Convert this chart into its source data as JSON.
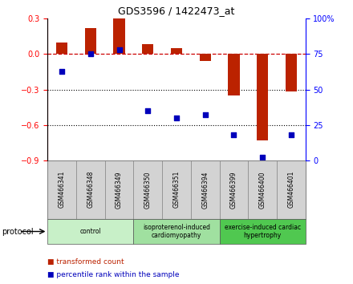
{
  "title": "GDS3596 / 1422473_at",
  "samples": [
    "GSM466341",
    "GSM466348",
    "GSM466349",
    "GSM466350",
    "GSM466351",
    "GSM466394",
    "GSM466399",
    "GSM466400",
    "GSM466401"
  ],
  "transformed_count": [
    0.1,
    0.22,
    0.3,
    0.08,
    0.05,
    -0.06,
    -0.35,
    -0.73,
    -0.32
  ],
  "percentile_rank": [
    63,
    75,
    78,
    35,
    30,
    32,
    18,
    2,
    18
  ],
  "groups": [
    {
      "label": "control",
      "start": 0,
      "end": 3
    },
    {
      "label": "isoproterenol-induced\ncardiomyopathy",
      "start": 3,
      "end": 6
    },
    {
      "label": "exercise-induced cardiac\nhypertrophy",
      "start": 6,
      "end": 9
    }
  ],
  "group_colors": [
    "#c8f0c8",
    "#a0e0a0",
    "#50c850"
  ],
  "ylim_left": [
    -0.9,
    0.3
  ],
  "ylim_right": [
    0,
    100
  ],
  "yticks_left": [
    -0.9,
    -0.6,
    -0.3,
    0.0,
    0.3
  ],
  "yticks_right": [
    0,
    25,
    50,
    75,
    100
  ],
  "bar_color": "#bb2200",
  "dot_color": "#0000bb",
  "hline_color": "#cc0000",
  "background_color": "#ffffff",
  "sample_box_color": "#d3d3d3",
  "protocol_label": "protocol",
  "legend_items": [
    {
      "label": "transformed count",
      "color": "#bb2200"
    },
    {
      "label": "percentile rank within the sample",
      "color": "#0000bb"
    }
  ]
}
